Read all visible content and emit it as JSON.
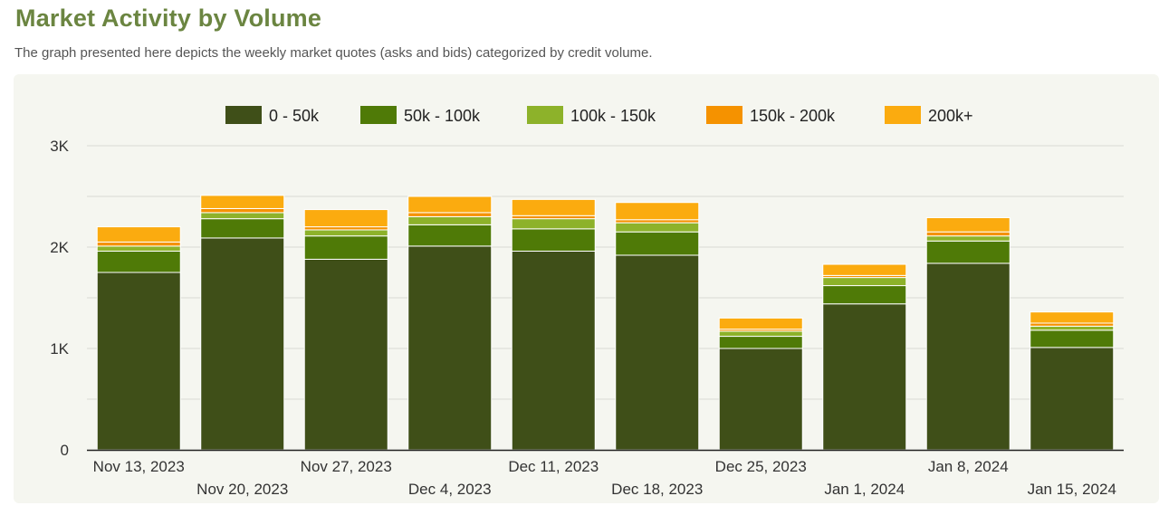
{
  "header": {
    "title": "Market Activity by Volume",
    "subtitle": "The graph presented here depicts the weekly market quotes (asks and bids) categorized by credit volume."
  },
  "chart_data": {
    "type": "bar",
    "stacked": true,
    "title": "",
    "xlabel": "",
    "ylabel": "",
    "ylim": [
      0,
      3000
    ],
    "yticks": [
      {
        "value": 0,
        "label": "0"
      },
      {
        "value": 1000,
        "label": "1K"
      },
      {
        "value": 2000,
        "label": "2K"
      },
      {
        "value": 3000,
        "label": "3K"
      }
    ],
    "grid": true,
    "legend_position": "top",
    "categories": [
      "Nov 13, 2023",
      "Nov 20, 2023",
      "Nov 27, 2023",
      "Dec 4, 2023",
      "Dec 11, 2023",
      "Dec 18, 2023",
      "Dec 25, 2023",
      "Jan 1, 2024",
      "Jan 8, 2024",
      "Jan 15, 2024"
    ],
    "series": [
      {
        "name": "0 - 50k",
        "color": "#3f4f18",
        "values": [
          1750,
          2090,
          1880,
          2010,
          1960,
          1920,
          1000,
          1440,
          1840,
          1010
        ]
      },
      {
        "name": "50k - 100k",
        "color": "#4f7a07",
        "values": [
          210,
          190,
          230,
          210,
          220,
          230,
          120,
          180,
          220,
          170
        ]
      },
      {
        "name": "100k - 150k",
        "color": "#8db22a",
        "values": [
          50,
          60,
          60,
          80,
          100,
          90,
          50,
          80,
          50,
          40
        ]
      },
      {
        "name": "150k - 200k",
        "color": "#f59200",
        "values": [
          40,
          40,
          30,
          40,
          30,
          30,
          20,
          20,
          40,
          30
        ]
      },
      {
        "name": "200k+",
        "color": "#fbab0f",
        "values": [
          150,
          130,
          170,
          160,
          160,
          170,
          110,
          110,
          140,
          110
        ]
      }
    ]
  }
}
